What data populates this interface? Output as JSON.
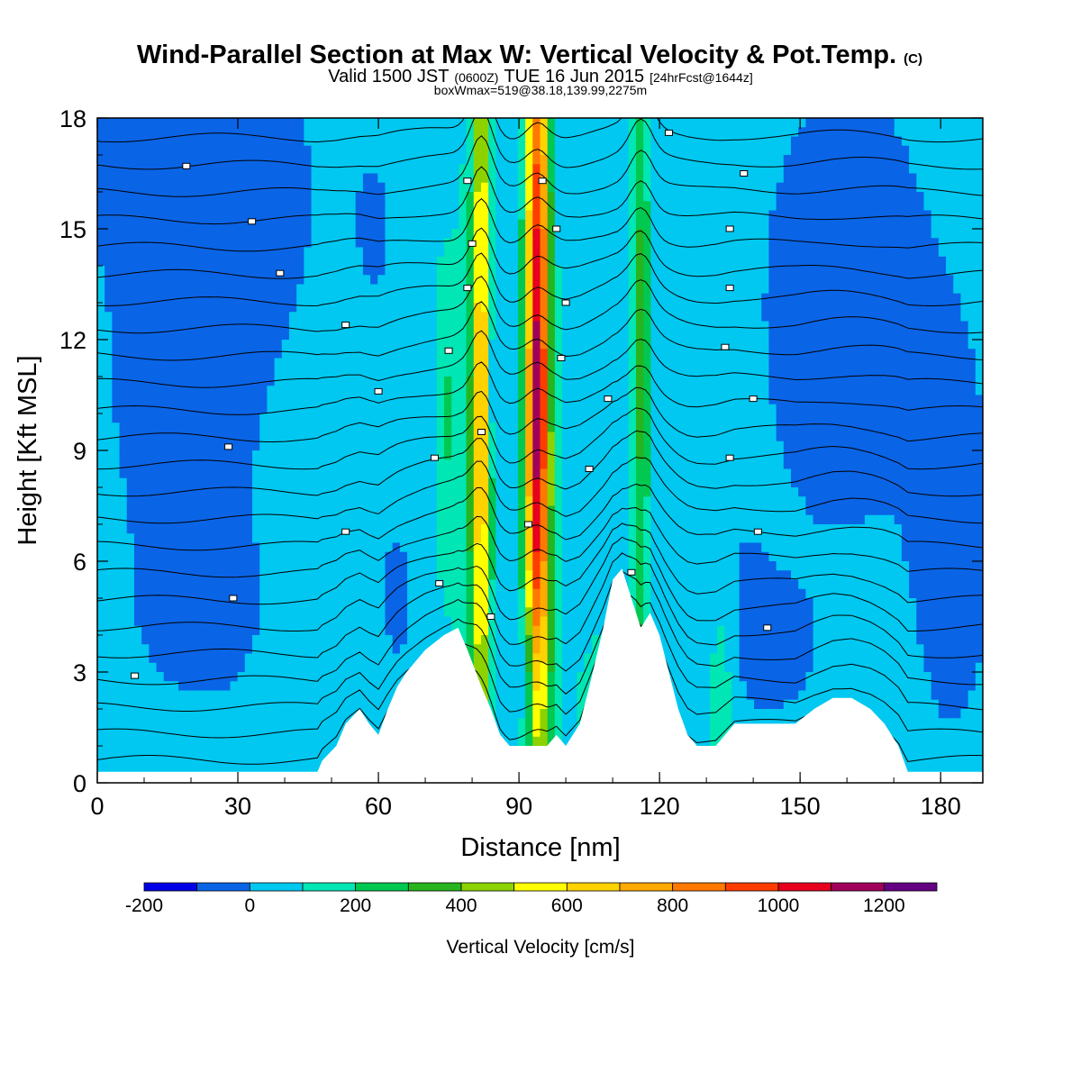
{
  "chart_data": {
    "type": "heatmap",
    "title": "Wind-Parallel Section at Max W: Vertical Velocity & Pot.Temp.",
    "title_mark": "(C)",
    "subtitle": {
      "a": "Valid 1500 JST",
      "b": "(0600Z)",
      "c": "TUE 16 Jun 2015",
      "d": "[24hrFcst@1644z]"
    },
    "info_line": "boxWmax=519@38.18,139.99,2275m",
    "xlabel": "Distance [nm]",
    "ylabel": "Height [Kft MSL]",
    "xlim": [
      0,
      189
    ],
    "ylim": [
      0,
      18
    ],
    "x_ticks": [
      0,
      30,
      60,
      90,
      120,
      150,
      180
    ],
    "y_ticks": [
      0,
      3,
      6,
      9,
      12,
      15,
      18
    ],
    "colorbar": {
      "title": "Vertical Velocity [cm/s]",
      "levels": [
        -200,
        -100,
        0,
        100,
        200,
        300,
        400,
        500,
        600,
        700,
        800,
        900,
        1000,
        1100,
        1200,
        1300
      ],
      "labels": [
        -200,
        0,
        200,
        400,
        600,
        800,
        1000,
        1200
      ],
      "colors": [
        "#0000e6",
        "#0a64e6",
        "#00c8f0",
        "#00e6b4",
        "#00c850",
        "#28b41e",
        "#8cd200",
        "#ffff00",
        "#ffd200",
        "#ffaa00",
        "#ff7800",
        "#ff3c00",
        "#e6001e",
        "#a0005a",
        "#640082"
      ]
    },
    "terrain": [
      [
        0,
        0.3
      ],
      [
        47,
        0.3
      ],
      [
        48,
        0.6
      ],
      [
        51,
        1.0
      ],
      [
        53,
        1.6
      ],
      [
        56,
        2.0
      ],
      [
        58,
        1.6
      ],
      [
        60,
        1.3
      ],
      [
        62,
        2.0
      ],
      [
        64,
        2.6
      ],
      [
        66,
        3.0
      ],
      [
        70,
        3.6
      ],
      [
        74,
        4.0
      ],
      [
        77,
        4.2
      ],
      [
        79,
        3.6
      ],
      [
        82,
        2.6
      ],
      [
        84,
        2.0
      ],
      [
        86,
        1.3
      ],
      [
        88,
        1.0
      ],
      [
        96,
        1.0
      ],
      [
        98,
        1.3
      ],
      [
        100,
        1.0
      ],
      [
        103,
        1.6
      ],
      [
        105,
        2.6
      ],
      [
        108,
        4.2
      ],
      [
        110,
        5.5
      ],
      [
        112,
        5.8
      ],
      [
        114,
        5.0
      ],
      [
        116,
        4.2
      ],
      [
        118,
        4.6
      ],
      [
        120,
        4.0
      ],
      [
        122,
        3.0
      ],
      [
        124,
        2.0
      ],
      [
        126,
        1.3
      ],
      [
        128,
        1.0
      ],
      [
        132,
        1.0
      ],
      [
        136,
        1.6
      ],
      [
        141,
        1.6
      ],
      [
        149,
        1.6
      ],
      [
        153,
        2.0
      ],
      [
        157,
        2.3
      ],
      [
        161,
        2.3
      ],
      [
        165,
        2.0
      ],
      [
        168,
        1.6
      ],
      [
        171,
        1.0
      ],
      [
        173,
        0.3
      ],
      [
        189,
        0.3
      ]
    ],
    "theta_contours": {
      "count": 24,
      "ridge_amplitude_kft": [
        0.55,
        0.2,
        0.4
      ],
      "ridge_centers_nm": [
        82,
        94,
        116
      ],
      "labels": [
        {
          "x": 8,
          "y": 2.9
        },
        {
          "x": 29,
          "y": 5.0
        },
        {
          "x": 53,
          "y": 6.8
        },
        {
          "x": 73,
          "y": 5.4
        },
        {
          "x": 84,
          "y": 4.5
        },
        {
          "x": 92,
          "y": 7.0
        },
        {
          "x": 72,
          "y": 8.8
        },
        {
          "x": 28,
          "y": 9.1
        },
        {
          "x": 60,
          "y": 10.6
        },
        {
          "x": 53,
          "y": 12.4
        },
        {
          "x": 39,
          "y": 13.8
        },
        {
          "x": 33,
          "y": 15.2
        },
        {
          "x": 19,
          "y": 16.7
        },
        {
          "x": 75,
          "y": 11.7
        },
        {
          "x": 82,
          "y": 9.5
        },
        {
          "x": 79,
          "y": 13.4
        },
        {
          "x": 80,
          "y": 14.6
        },
        {
          "x": 79,
          "y": 16.3
        },
        {
          "x": 95,
          "y": 16.3
        },
        {
          "x": 98,
          "y": 15.0
        },
        {
          "x": 100,
          "y": 13.0
        },
        {
          "x": 99,
          "y": 11.5
        },
        {
          "x": 109,
          "y": 10.4
        },
        {
          "x": 105,
          "y": 8.5
        },
        {
          "x": 114,
          "y": 5.7
        },
        {
          "x": 122,
          "y": 17.6
        },
        {
          "x": 138,
          "y": 16.5
        },
        {
          "x": 135,
          "y": 15.0
        },
        {
          "x": 135,
          "y": 13.4
        },
        {
          "x": 134,
          "y": 11.8
        },
        {
          "x": 140,
          "y": 10.4
        },
        {
          "x": 135,
          "y": 8.8
        },
        {
          "x": 141,
          "y": 6.8
        },
        {
          "x": 143,
          "y": 4.2
        }
      ]
    },
    "w_features": [
      {
        "type": "background",
        "value": 50
      },
      {
        "type": "blob",
        "x": 3,
        "y": 17,
        "sx": 12,
        "sy": 4,
        "value": -60
      },
      {
        "type": "blob",
        "x": 25,
        "y": 13,
        "sx": 8,
        "sy": 6,
        "value": -80
      },
      {
        "type": "blob",
        "x": 38,
        "y": 16,
        "sx": 10,
        "sy": 4,
        "value": -60
      },
      {
        "type": "blob",
        "x": 10,
        "y": 10,
        "sx": 6,
        "sy": 2.5,
        "value": -60
      },
      {
        "type": "blob",
        "x": 20,
        "y": 4.5,
        "sx": 14,
        "sy": 2,
        "value": -60
      },
      {
        "type": "blob",
        "x": 60,
        "y": 15,
        "sx": 6,
        "sy": 3,
        "value": -50
      },
      {
        "type": "blob",
        "x": 64,
        "y": 5,
        "sx": 4,
        "sy": 2.5,
        "value": -60
      },
      {
        "type": "blob",
        "x": 160,
        "y": 13,
        "sx": 18,
        "sy": 6,
        "value": -80
      },
      {
        "type": "blob",
        "x": 183,
        "y": 6,
        "sx": 6,
        "sy": 4,
        "value": -80
      },
      {
        "type": "blob",
        "x": 130,
        "y": 5,
        "sx": 8,
        "sy": 2.5,
        "value": -50
      },
      {
        "type": "blob",
        "x": 145,
        "y": 3,
        "sx": 10,
        "sy": 2,
        "value": -40
      },
      {
        "type": "blob",
        "x": 108,
        "y": 17,
        "sx": 6,
        "sy": 2,
        "value": -40
      },
      {
        "type": "blob",
        "x": 87,
        "y": 14,
        "sx": 1.8,
        "sy": 5,
        "value": -50
      },
      {
        "type": "plume",
        "x": 82,
        "y": 11,
        "sx": 1.3,
        "sy": 9,
        "value": 560
      },
      {
        "type": "plume",
        "x": 80,
        "y": 8,
        "sx": 2.8,
        "sy": 6,
        "value": 180
      },
      {
        "type": "plume",
        "x": 94,
        "y": 12.5,
        "sx": 1.8,
        "sy": 7.5,
        "value": 1000
      },
      {
        "type": "plume",
        "x": 94,
        "y": 6,
        "sx": 2.5,
        "sy": 4,
        "value": 250
      },
      {
        "type": "plume",
        "x": 116,
        "y": 12,
        "sx": 1.5,
        "sy": 6,
        "value": 300
      },
      {
        "type": "plume",
        "x": 74,
        "y": 10,
        "sx": 1.5,
        "sy": 3,
        "value": 150
      },
      {
        "type": "blob",
        "x": 91.5,
        "y": 3.2,
        "sx": 1.2,
        "sy": 1.3,
        "value": -190
      },
      {
        "type": "blob",
        "x": 84,
        "y": 10.8,
        "sx": 0.7,
        "sy": 1.2,
        "value": -170
      },
      {
        "type": "blob",
        "x": 112,
        "y": 2,
        "sx": 10,
        "sy": 2.5,
        "value": 80
      },
      {
        "type": "blob",
        "x": 133,
        "y": 2.5,
        "sx": 2,
        "sy": 2.5,
        "value": 150
      }
    ]
  }
}
